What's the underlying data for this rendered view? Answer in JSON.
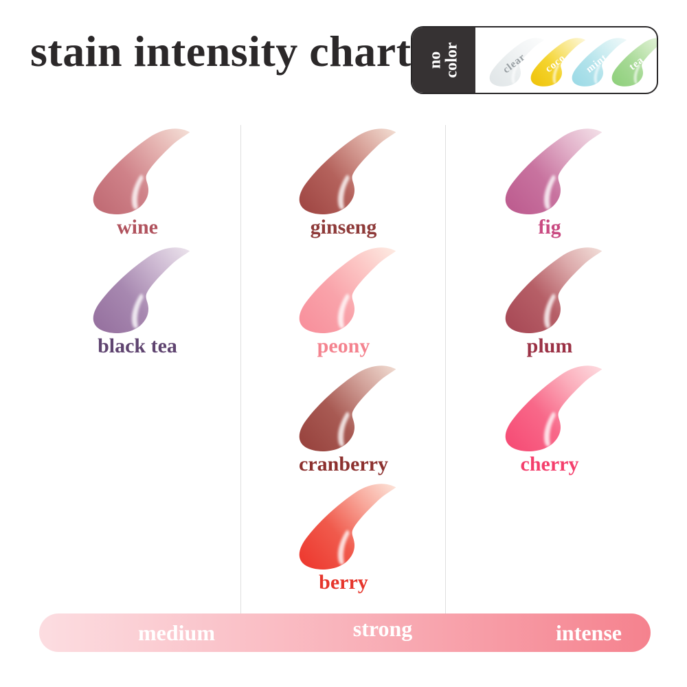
{
  "title": "stain intensity chart",
  "no_color_panel": {
    "label": "no color",
    "swatches": [
      {
        "name": "clear",
        "text_color": "#979ea2",
        "gradient": [
          "#e1e6e8",
          "#eaeeef",
          "#f4f6f7",
          "#fbfcfc"
        ]
      },
      {
        "name": "coco",
        "text_color": "#ffffff",
        "gradient": [
          "#efc40c",
          "#f4d42f",
          "#f9e88f",
          "#fdf6d2"
        ]
      },
      {
        "name": "mint",
        "text_color": "#ffffff",
        "gradient": [
          "#9cdae6",
          "#b3e3eb",
          "#d5f0f3",
          "#edf8f9"
        ]
      },
      {
        "name": "tea",
        "text_color": "#ffffff",
        "gradient": [
          "#8fd07c",
          "#a6d995",
          "#cce9be",
          "#e8f5df"
        ]
      }
    ]
  },
  "columns": [
    {
      "intensity": "medium",
      "swatches": [
        {
          "name": "wine",
          "text_color": "#b0525d",
          "gradient": [
            "#c06b74",
            "#cf8289",
            "#e5b3b1",
            "#f3dcd4"
          ]
        },
        {
          "name": "black tea",
          "text_color": "#5f4470",
          "gradient": [
            "#96719f",
            "#a788b0",
            "#cdb9d2",
            "#e9e0ea"
          ]
        }
      ]
    },
    {
      "intensity": "strong",
      "swatches": [
        {
          "name": "ginseng",
          "text_color": "#8e3a39",
          "gradient": [
            "#a04744",
            "#b4625c",
            "#d9a49b",
            "#f0d9ce"
          ]
        },
        {
          "name": "peony",
          "text_color": "#f4838f",
          "gradient": [
            "#f8909c",
            "#f9a3aa",
            "#fcc8c6",
            "#fde9e1"
          ]
        },
        {
          "name": "cranberry",
          "text_color": "#8c302e",
          "gradient": [
            "#98433e",
            "#a85a53",
            "#d2a29a",
            "#eed7cd"
          ]
        },
        {
          "name": "berry",
          "text_color": "#e6352b",
          "gradient": [
            "#ed392f",
            "#f05a4c",
            "#f8a89b",
            "#fcdfd4"
          ]
        }
      ]
    },
    {
      "intensity": "intense",
      "swatches": [
        {
          "name": "fig",
          "text_color": "#c94a81",
          "gradient": [
            "#bd5c8f",
            "#c8739f",
            "#e2b2ca",
            "#f2dde6"
          ]
        },
        {
          "name": "plum",
          "text_color": "#9b3145",
          "gradient": [
            "#a84956",
            "#b65f67",
            "#dcaaab",
            "#f0dad5"
          ]
        },
        {
          "name": "cherry",
          "text_color": "#f43f6c",
          "gradient": [
            "#f64c75",
            "#f86889",
            "#fbadbb",
            "#fdd8dd"
          ]
        }
      ]
    }
  ],
  "scale_bar": {
    "labels": [
      "medium",
      "strong",
      "intense"
    ],
    "gradient": [
      "#fcdde1",
      "#f9b3bb",
      "#f5828e"
    ]
  }
}
